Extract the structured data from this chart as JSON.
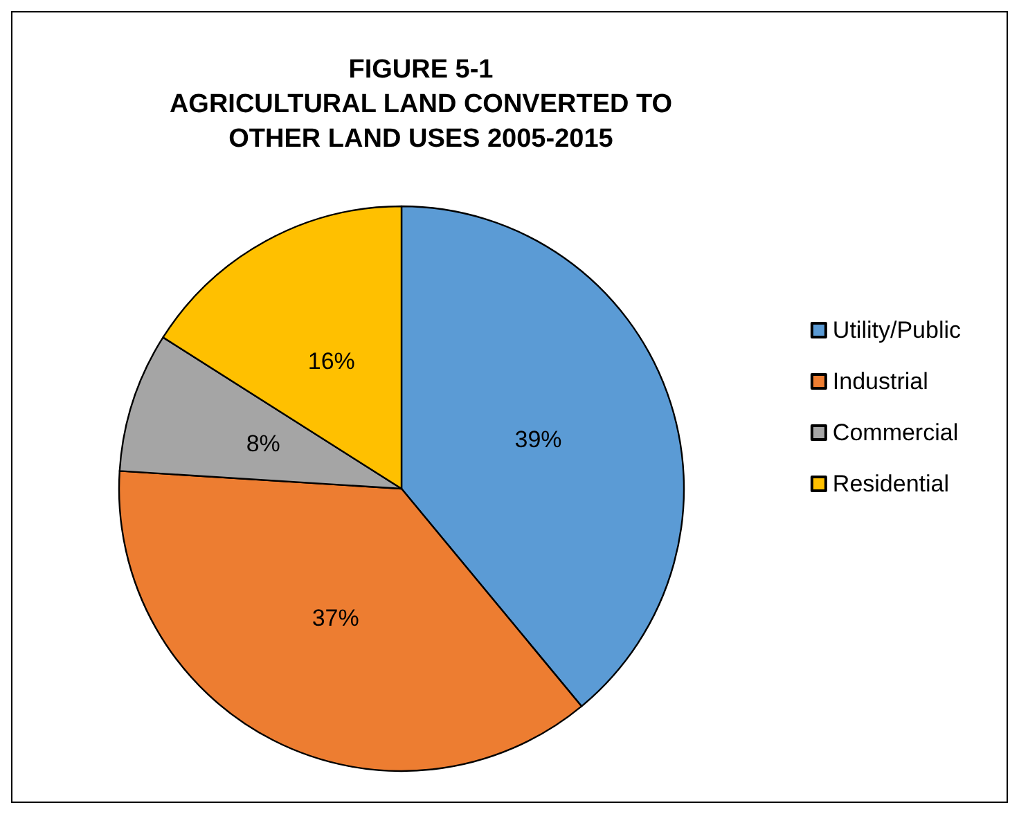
{
  "chart_data": {
    "type": "pie",
    "title": "FIGURE 5-1\nAGRICULTURAL LAND CONVERTED TO\nOTHER LAND USES 2005-2015",
    "categories": [
      "Utility/Public",
      "Industrial",
      "Commercial",
      "Residential"
    ],
    "values": [
      39,
      37,
      8,
      16
    ],
    "value_labels": [
      "39%",
      "37%",
      "8%",
      "16%"
    ],
    "colors": [
      "#5b9bd5",
      "#ed7d31",
      "#a5a5a5",
      "#ffc000"
    ],
    "legend": "right"
  }
}
